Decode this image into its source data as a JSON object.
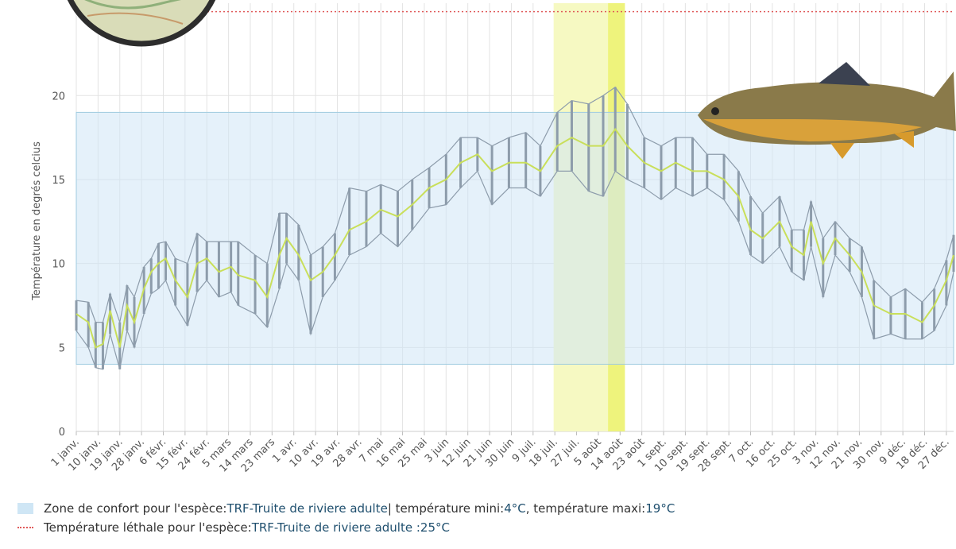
{
  "chart_data": {
    "type": "line",
    "y_label": "Température en degrés celcius",
    "xlim": [
      0,
      363
    ],
    "ylim": [
      0,
      25.5
    ],
    "yticks": [
      0,
      5,
      10,
      15,
      20
    ],
    "xticks": [
      {
        "value": 0,
        "label": "1 janv."
      },
      {
        "value": 9,
        "label": "10 janv."
      },
      {
        "value": 18,
        "label": "19 janv."
      },
      {
        "value": 27,
        "label": "28 janv."
      },
      {
        "value": 36,
        "label": "6 févr."
      },
      {
        "value": 45,
        "label": "15 févr."
      },
      {
        "value": 54,
        "label": "24 févr."
      },
      {
        "value": 63,
        "label": "5 mars"
      },
      {
        "value": 72,
        "label": "14 mars"
      },
      {
        "value": 81,
        "label": "23 mars"
      },
      {
        "value": 90,
        "label": "1 avr."
      },
      {
        "value": 99,
        "label": "10 avr."
      },
      {
        "value": 108,
        "label": "19 avr."
      },
      {
        "value": 117,
        "label": "28 avr."
      },
      {
        "value": 126,
        "label": "7 mai"
      },
      {
        "value": 135,
        "label": "16 mai"
      },
      {
        "value": 144,
        "label": "25 mai"
      },
      {
        "value": 153,
        "label": "3 juin"
      },
      {
        "value": 162,
        "label": "12 juin"
      },
      {
        "value": 171,
        "label": "21 juin"
      },
      {
        "value": 180,
        "label": "30 juin"
      },
      {
        "value": 189,
        "label": "9 juil."
      },
      {
        "value": 198,
        "label": "18 juil."
      },
      {
        "value": 207,
        "label": "27 juil."
      },
      {
        "value": 216,
        "label": "5 août"
      },
      {
        "value": 225,
        "label": "14 août"
      },
      {
        "value": 234,
        "label": "23 août"
      },
      {
        "value": 243,
        "label": "1 sept."
      },
      {
        "value": 252,
        "label": "10 sept."
      },
      {
        "value": 261,
        "label": "19 sept."
      },
      {
        "value": 270,
        "label": "28 sept."
      },
      {
        "value": 279,
        "label": "7 oct."
      },
      {
        "value": 288,
        "label": "16 oct."
      },
      {
        "value": 297,
        "label": "25 oct."
      },
      {
        "value": 306,
        "label": "3 nov."
      },
      {
        "value": 315,
        "label": "12 nov."
      },
      {
        "value": 324,
        "label": "21 nov."
      },
      {
        "value": 333,
        "label": "30 nov."
      },
      {
        "value": 342,
        "label": "9 déc."
      },
      {
        "value": 351,
        "label": "18 déc."
      },
      {
        "value": 360,
        "label": "27 déc."
      }
    ],
    "grid": true,
    "x": [
      0,
      5,
      8,
      11,
      14,
      18,
      21,
      24,
      28,
      31,
      34,
      37,
      41,
      46,
      50,
      54,
      59,
      64,
      67,
      74,
      79,
      84,
      87,
      92,
      97,
      102,
      107,
      113,
      120,
      126,
      133,
      139,
      146,
      153,
      159,
      166,
      172,
      179,
      186,
      192,
      199,
      205,
      212,
      218,
      223,
      228,
      235,
      242,
      248,
      255,
      261,
      268,
      274,
      279,
      284,
      291,
      296,
      301,
      304,
      309,
      314,
      320,
      325,
      330,
      337,
      343,
      350,
      355,
      360,
      363
    ],
    "range": {
      "color": "#8d9cab",
      "high": [
        7.8,
        7.7,
        6.5,
        6.5,
        8.2,
        6.5,
        8.7,
        8.0,
        9.8,
        10.3,
        11.2,
        11.3,
        10.3,
        10.0,
        11.8,
        11.3,
        11.3,
        11.3,
        11.3,
        10.5,
        10.0,
        13.0,
        13.0,
        12.3,
        10.5,
        11.0,
        11.8,
        14.5,
        14.3,
        14.7,
        14.3,
        15.0,
        15.7,
        16.5,
        17.5,
        17.5,
        17.0,
        17.5,
        17.8,
        17.0,
        19.0,
        19.7,
        19.5,
        20.0,
        20.5,
        19.5,
        17.5,
        17.0,
        17.5,
        17.5,
        16.5,
        16.5,
        15.5,
        14.0,
        13.0,
        14.0,
        12.0,
        12.0,
        13.7,
        11.5,
        12.5,
        11.5,
        11.0,
        9.0,
        8.0,
        8.5,
        7.7,
        8.5,
        10.2,
        11.7
      ],
      "low": [
        6.0,
        5.0,
        3.8,
        3.7,
        5.8,
        3.7,
        6.0,
        5.0,
        7.0,
        8.2,
        8.5,
        9.0,
        7.5,
        6.3,
        8.3,
        9.0,
        8.0,
        8.3,
        7.5,
        7.0,
        6.2,
        8.5,
        10.0,
        9.0,
        5.8,
        8.0,
        9.0,
        10.5,
        11.0,
        11.8,
        11.0,
        12.0,
        13.3,
        13.5,
        14.5,
        15.5,
        13.5,
        14.5,
        14.5,
        14.0,
        15.5,
        15.5,
        14.3,
        14.0,
        15.5,
        15.0,
        14.5,
        13.8,
        14.5,
        14.0,
        14.5,
        13.8,
        12.5,
        10.5,
        10.0,
        11.0,
        9.5,
        9.0,
        11.0,
        8.0,
        10.5,
        9.5,
        8.0,
        5.5,
        5.8,
        5.5,
        5.5,
        6.0,
        7.5,
        9.5
      ]
    },
    "mean": {
      "color": "#c9df5a",
      "values": [
        7,
        6.5,
        5,
        5.2,
        7.2,
        5,
        7.5,
        6.5,
        8.5,
        9.5,
        10,
        10.3,
        9,
        8,
        10,
        10.3,
        9.5,
        9.8,
        9.3,
        9,
        8,
        10.5,
        11.5,
        10.5,
        9,
        9.5,
        10.5,
        12,
        12.5,
        13.2,
        12.8,
        13.5,
        14.5,
        15,
        16,
        16.5,
        15.5,
        16,
        16,
        15.5,
        17,
        17.5,
        17,
        17,
        18,
        17,
        16,
        15.5,
        16,
        15.5,
        15.5,
        15,
        14,
        12,
        11.5,
        12.5,
        11,
        10.5,
        12.5,
        10,
        11.5,
        10.5,
        9.5,
        7.5,
        7,
        7,
        6.5,
        7.5,
        9,
        10.5
      ]
    },
    "highlights": [
      {
        "from": 197.5,
        "to": 220,
        "color": "#f6f9c2"
      },
      {
        "from": 220,
        "to": 227,
        "color": "#eef37c"
      }
    ],
    "comfort_zone": {
      "color": "#cfe6f5",
      "text": "Zone de confort pour l'espèce:",
      "species": "TRF-Truite de riviere adulte",
      "min_text": "| température mini:",
      "min": {
        "value": 4,
        "label": "4°C"
      },
      "max_text": ", température maxi:",
      "max": {
        "value": 19,
        "label": "19°C"
      }
    },
    "lethal": {
      "color": "#e05a5a",
      "text": "Température léthale pour l'espèce:",
      "species": "TRF-Truite de riviere adulte :",
      "temp": {
        "value": 25,
        "label": "25°C"
      }
    }
  }
}
